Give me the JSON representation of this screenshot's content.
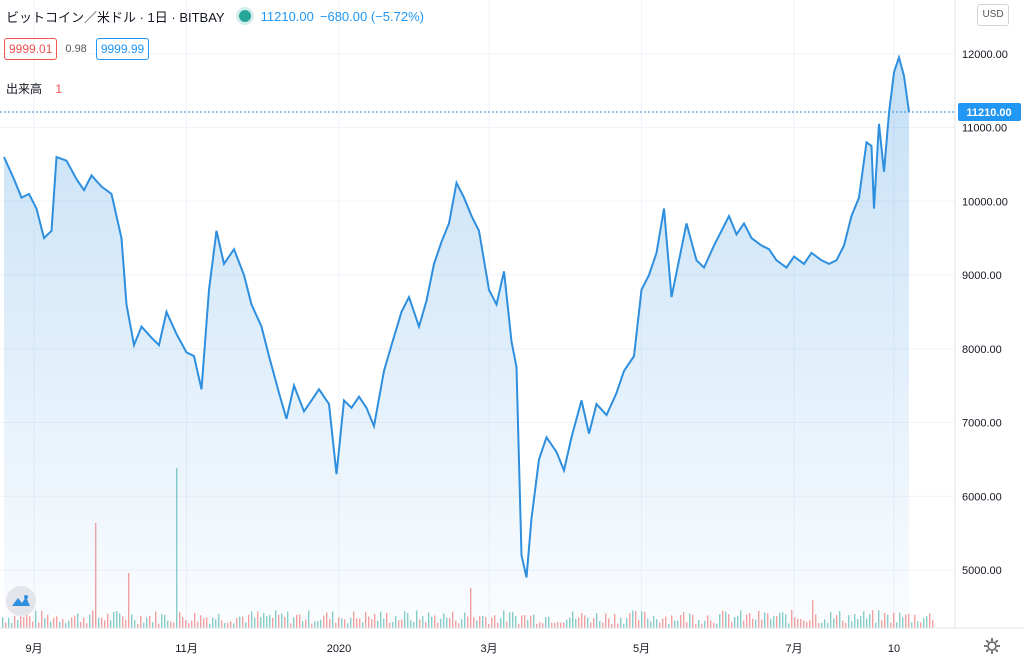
{
  "header": {
    "symbol_title": "ビットコイン／米ドル · 1日 · BITBAY",
    "last_price": "11210.00",
    "change": "−680.00 (−5.72%)"
  },
  "bid_ask": {
    "bid": "9999.01",
    "spread": "0.98",
    "ask": "9999.99"
  },
  "volume": {
    "label": "出来高",
    "value": "1"
  },
  "currency_button": "USD",
  "colors": {
    "line": "#2e8fdf",
    "bid": "#ef5350",
    "ask": "#2196f3",
    "up_volume": "#26a69a",
    "down_volume": "#ef5350"
  },
  "chart_data": {
    "type": "area",
    "last_price_label": "11210.00",
    "y_ticks": [
      "12000.00",
      "11000.00",
      "10000.00",
      "9000.00",
      "8000.00",
      "7000.00",
      "6000.00",
      "5000.00"
    ],
    "y_tick_values": [
      12000,
      11000,
      10000,
      9000,
      8000,
      7000,
      6000,
      5000
    ],
    "ylim": [
      4200,
      12700
    ],
    "x_ticks": [
      {
        "label": "9月",
        "date": "2019-09-01"
      },
      {
        "label": "11月",
        "date": "2019-11-01"
      },
      {
        "label": "2020",
        "date": "2020-01-01"
      },
      {
        "label": "3月",
        "date": "2020-03-01"
      },
      {
        "label": "5月",
        "date": "2020-05-01"
      },
      {
        "label": "7月",
        "date": "2020-07-01"
      },
      {
        "label": "10",
        "date": "2020-08-10"
      }
    ],
    "grid": true,
    "series": [
      {
        "points": [
          [
            "2019-08-20",
            10600
          ],
          [
            "2019-08-24",
            10300
          ],
          [
            "2019-08-27",
            10050
          ],
          [
            "2019-08-30",
            10100
          ],
          [
            "2019-09-02",
            9900
          ],
          [
            "2019-09-05",
            9500
          ],
          [
            "2019-09-08",
            9600
          ],
          [
            "2019-09-10",
            10600
          ],
          [
            "2019-09-14",
            10550
          ],
          [
            "2019-09-18",
            10300
          ],
          [
            "2019-09-21",
            10150
          ],
          [
            "2019-09-24",
            10350
          ],
          [
            "2019-09-28",
            10200
          ],
          [
            "2019-10-02",
            10100
          ],
          [
            "2019-10-06",
            9500
          ],
          [
            "2019-10-08",
            8600
          ],
          [
            "2019-10-11",
            8050
          ],
          [
            "2019-10-14",
            8300
          ],
          [
            "2019-10-18",
            8150
          ],
          [
            "2019-10-21",
            8050
          ],
          [
            "2019-10-24",
            8500
          ],
          [
            "2019-10-28",
            8200
          ],
          [
            "2019-11-01",
            7950
          ],
          [
            "2019-11-04",
            7900
          ],
          [
            "2019-11-07",
            7450
          ],
          [
            "2019-11-10",
            8800
          ],
          [
            "2019-11-13",
            9600
          ],
          [
            "2019-11-16",
            9150
          ],
          [
            "2019-11-20",
            9350
          ],
          [
            "2019-11-24",
            9000
          ],
          [
            "2019-11-27",
            8600
          ],
          [
            "2019-12-01",
            8300
          ],
          [
            "2019-12-04",
            7900
          ],
          [
            "2019-12-08",
            7400
          ],
          [
            "2019-12-11",
            7050
          ],
          [
            "2019-12-14",
            7500
          ],
          [
            "2019-12-18",
            7150
          ],
          [
            "2019-12-21",
            7300
          ],
          [
            "2019-12-24",
            7450
          ],
          [
            "2019-12-28",
            7250
          ],
          [
            "2019-12-31",
            6300
          ],
          [
            "2020-01-03",
            7300
          ],
          [
            "2020-01-06",
            7200
          ],
          [
            "2020-01-09",
            7350
          ],
          [
            "2020-01-12",
            7200
          ],
          [
            "2020-01-15",
            6950
          ],
          [
            "2020-01-19",
            7700
          ],
          [
            "2020-01-22",
            8050
          ],
          [
            "2020-01-26",
            8500
          ],
          [
            "2020-01-29",
            8700
          ],
          [
            "2020-02-02",
            8300
          ],
          [
            "2020-02-05",
            8650
          ],
          [
            "2020-02-08",
            9150
          ],
          [
            "2020-02-11",
            9450
          ],
          [
            "2020-02-14",
            9700
          ],
          [
            "2020-02-17",
            10250
          ],
          [
            "2020-02-20",
            10050
          ],
          [
            "2020-02-23",
            9800
          ],
          [
            "2020-02-26",
            9600
          ],
          [
            "2020-03-01",
            8800
          ],
          [
            "2020-03-04",
            8600
          ],
          [
            "2020-03-07",
            9050
          ],
          [
            "2020-03-10",
            8100
          ],
          [
            "2020-03-12",
            7750
          ],
          [
            "2020-03-14",
            5200
          ],
          [
            "2020-03-16",
            4900
          ],
          [
            "2020-03-18",
            5700
          ],
          [
            "2020-03-21",
            6500
          ],
          [
            "2020-03-24",
            6800
          ],
          [
            "2020-03-28",
            6600
          ],
          [
            "2020-03-31",
            6350
          ],
          [
            "2020-04-03",
            6800
          ],
          [
            "2020-04-07",
            7300
          ],
          [
            "2020-04-10",
            6850
          ],
          [
            "2020-04-13",
            7250
          ],
          [
            "2020-04-17",
            7100
          ],
          [
            "2020-04-21",
            7400
          ],
          [
            "2020-04-24",
            7700
          ],
          [
            "2020-04-28",
            7900
          ],
          [
            "2020-05-01",
            8800
          ],
          [
            "2020-05-04",
            9000
          ],
          [
            "2020-05-07",
            9300
          ],
          [
            "2020-05-10",
            9900
          ],
          [
            "2020-05-13",
            8700
          ],
          [
            "2020-05-16",
            9200
          ],
          [
            "2020-05-19",
            9700
          ],
          [
            "2020-05-23",
            9200
          ],
          [
            "2020-05-26",
            9100
          ],
          [
            "2020-05-30",
            9400
          ],
          [
            "2020-06-02",
            9600
          ],
          [
            "2020-06-05",
            9800
          ],
          [
            "2020-06-08",
            9550
          ],
          [
            "2020-06-11",
            9700
          ],
          [
            "2020-06-14",
            9500
          ],
          [
            "2020-06-18",
            9400
          ],
          [
            "2020-06-21",
            9350
          ],
          [
            "2020-06-24",
            9200
          ],
          [
            "2020-06-28",
            9100
          ],
          [
            "2020-07-01",
            9250
          ],
          [
            "2020-07-05",
            9150
          ],
          [
            "2020-07-08",
            9300
          ],
          [
            "2020-07-12",
            9200
          ],
          [
            "2020-07-15",
            9150
          ],
          [
            "2020-07-18",
            9200
          ],
          [
            "2020-07-21",
            9400
          ],
          [
            "2020-07-24",
            9800
          ],
          [
            "2020-07-27",
            10050
          ],
          [
            "2020-07-30",
            10800
          ],
          [
            "2020-08-01",
            10750
          ],
          [
            "2020-08-02",
            9900
          ],
          [
            "2020-08-04",
            11050
          ],
          [
            "2020-08-06",
            10400
          ],
          [
            "2020-08-08",
            11200
          ],
          [
            "2020-08-10",
            11750
          ],
          [
            "2020-08-12",
            11950
          ],
          [
            "2020-08-14",
            11700
          ],
          [
            "2020-08-16",
            11210
          ]
        ]
      }
    ]
  }
}
